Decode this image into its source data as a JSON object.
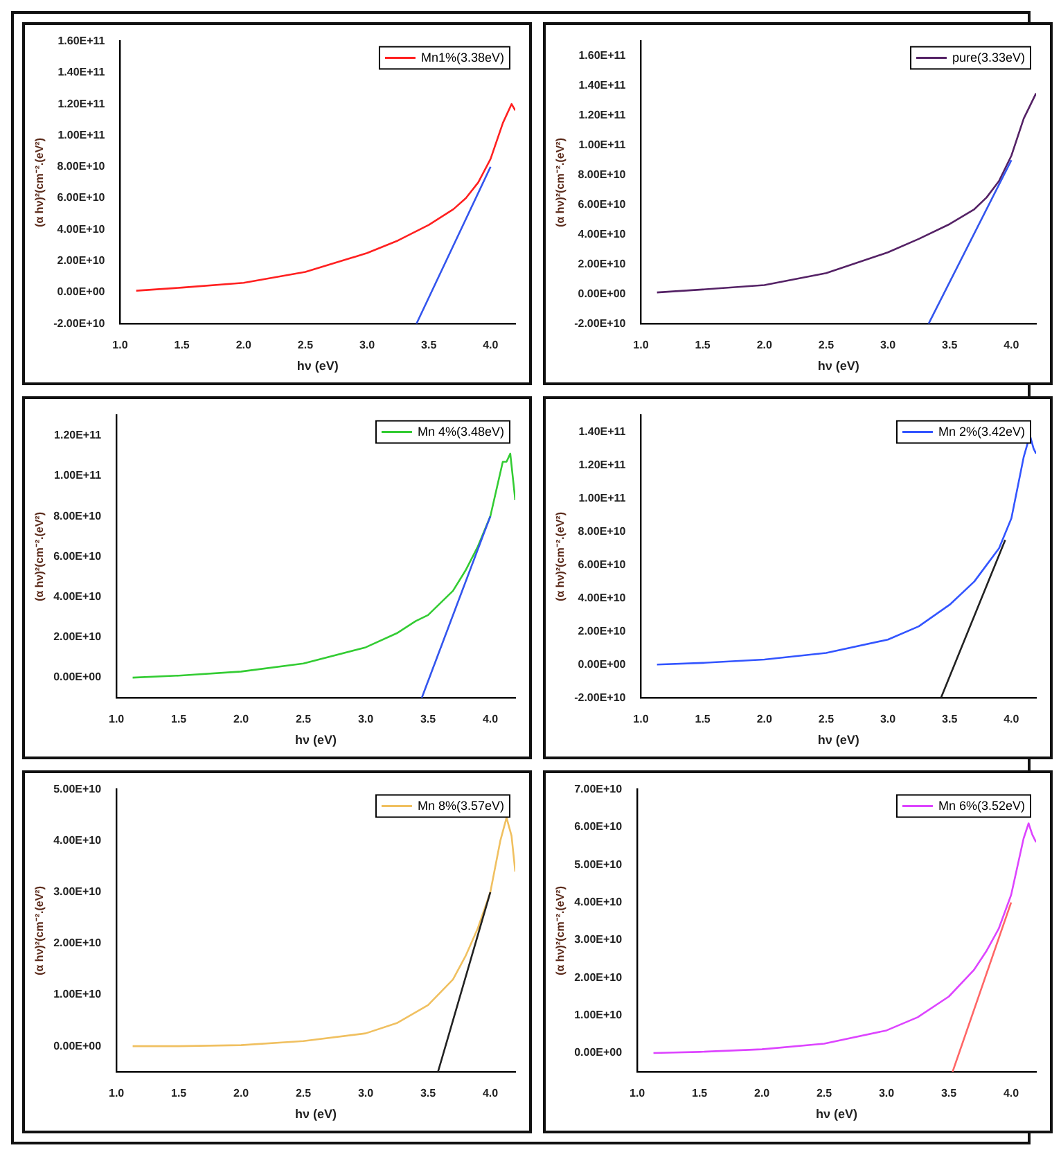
{
  "chart_data": [
    {
      "type": "line",
      "xlabel": "hν (eV)",
      "ylabel": "(α hν)²(cm⁻².(eV²)",
      "xlim": [
        1.0,
        4.2
      ],
      "xticks": [
        {
          "value": 1,
          "label": "1.0"
        },
        {
          "value": 1.5,
          "label": "1.5"
        },
        {
          "value": 2,
          "label": "2.0"
        },
        {
          "value": 2.5,
          "label": "2.5"
        },
        {
          "value": 3,
          "label": "3.0"
        },
        {
          "value": 3.5,
          "label": "3.5"
        },
        {
          "value": 4,
          "label": "4.0"
        }
      ],
      "ylim": [
        -20000000000.0,
        160000000000.0
      ],
      "yticks": [
        {
          "value": -20000000000.0,
          "label": "-2.00E+10"
        },
        {
          "value": 0,
          "label": "0.00E+00"
        },
        {
          "value": 20000000000.0,
          "label": "2.00E+10"
        },
        {
          "value": 40000000000.0,
          "label": "4.00E+10"
        },
        {
          "value": 60000000000.0,
          "label": "6.00E+10"
        },
        {
          "value": 80000000000.0,
          "label": "8.00E+10"
        },
        {
          "value": 100000000000.0,
          "label": "1.00E+11"
        },
        {
          "value": 120000000000.0,
          "label": "1.20E+11"
        },
        {
          "value": 140000000000.0,
          "label": "1.40E+11"
        },
        {
          "value": 160000000000.0,
          "label": "1.60E+11"
        }
      ],
      "grid": false,
      "legend": "top right",
      "marker": "none",
      "series": [
        {
          "name": "Mn1%(3.38eV)",
          "color": "#ff2020",
          "x": [
            1.13,
            1.5,
            2.0,
            2.5,
            3.0,
            3.25,
            3.5,
            3.7,
            3.8,
            3.9,
            4.0,
            4.1,
            4.17,
            4.2
          ],
          "values": [
            1000000000.0,
            3000000000.0,
            6000000000.0,
            13000000000.0,
            25000000000.0,
            33000000000.0,
            43000000000.0,
            53000000000.0,
            60000000000.0,
            70000000000.0,
            85000000000.0,
            108000000000.0,
            120000000000.0,
            116000000000.0
          ]
        },
        {
          "type": "line",
          "color": "#3355ee",
          "x": [
            3.4,
            4.0
          ],
          "values": [
            -20000000000.0,
            80000000000.0
          ]
        }
      ]
    },
    {
      "type": "line",
      "xlabel": "hν (eV)",
      "ylabel": "(α hν)²(cm⁻².(eV²)",
      "xlim": [
        1.0,
        4.2
      ],
      "xticks": [
        {
          "value": 1,
          "label": "1.0"
        },
        {
          "value": 1.5,
          "label": "1.5"
        },
        {
          "value": 2,
          "label": "2.0"
        },
        {
          "value": 2.5,
          "label": "2.5"
        },
        {
          "value": 3,
          "label": "3.0"
        },
        {
          "value": 3.5,
          "label": "3.5"
        },
        {
          "value": 4,
          "label": "4.0"
        }
      ],
      "ylim": [
        -20000000000.0,
        170000000000.0
      ],
      "yticks": [
        {
          "value": -20000000000.0,
          "label": "-2.00E+10"
        },
        {
          "value": 0,
          "label": "0.00E+00"
        },
        {
          "value": 20000000000.0,
          "label": "2.00E+10"
        },
        {
          "value": 40000000000.0,
          "label": "4.00E+10"
        },
        {
          "value": 60000000000.0,
          "label": "6.00E+10"
        },
        {
          "value": 80000000000.0,
          "label": "8.00E+10"
        },
        {
          "value": 100000000000.0,
          "label": "1.00E+11"
        },
        {
          "value": 120000000000.0,
          "label": "1.20E+11"
        },
        {
          "value": 140000000000.0,
          "label": "1.40E+11"
        },
        {
          "value": 160000000000.0,
          "label": "1.60E+11"
        }
      ],
      "grid": false,
      "legend": "top right",
      "marker": "none",
      "series": [
        {
          "name": "pure(3.33eV)",
          "color": "#552266",
          "x": [
            1.13,
            1.5,
            2.0,
            2.5,
            3.0,
            3.25,
            3.5,
            3.7,
            3.8,
            3.9,
            4.0,
            4.1,
            4.2
          ],
          "values": [
            1000000000.0,
            3000000000.0,
            6000000000.0,
            14000000000.0,
            28000000000.0,
            37000000000.0,
            47000000000.0,
            57000000000.0,
            65000000000.0,
            76000000000.0,
            93000000000.0,
            118000000000.0,
            135000000000.0
          ]
        },
        {
          "type": "line",
          "color": "#3355ee",
          "x": [
            3.33,
            4.0
          ],
          "values": [
            -20000000000.0,
            90000000000.0
          ]
        }
      ]
    },
    {
      "type": "line",
      "xlabel": "hν (eV)",
      "ylabel": "(α hν)²(cm⁻².(eV²)",
      "xlim": [
        1.0,
        4.2
      ],
      "xticks": [
        {
          "value": 1,
          "label": "1.0"
        },
        {
          "value": 1.5,
          "label": "1.5"
        },
        {
          "value": 2,
          "label": "2.0"
        },
        {
          "value": 2.5,
          "label": "2.5"
        },
        {
          "value": 3,
          "label": "3.0"
        },
        {
          "value": 3.5,
          "label": "3.5"
        },
        {
          "value": 4,
          "label": "4.0"
        }
      ],
      "ylim": [
        -10000000000.0,
        130000000000.0
      ],
      "yticks": [
        {
          "value": 0,
          "label": "0.00E+00"
        },
        {
          "value": 20000000000.0,
          "label": "2.00E+10"
        },
        {
          "value": 40000000000.0,
          "label": "4.00E+10"
        },
        {
          "value": 60000000000.0,
          "label": "6.00E+10"
        },
        {
          "value": 80000000000.0,
          "label": "8.00E+10"
        },
        {
          "value": 100000000000.0,
          "label": "1.00E+11"
        },
        {
          "value": 120000000000.0,
          "label": "1.20E+11"
        }
      ],
      "grid": false,
      "legend": "top right",
      "marker": "none",
      "series": [
        {
          "name": "Mn 4%(3.48eV)",
          "color": "#33cc33",
          "x": [
            1.13,
            1.5,
            2.0,
            2.5,
            3.0,
            3.25,
            3.4,
            3.5,
            3.7,
            3.8,
            3.9,
            4.0,
            4.1,
            4.13,
            4.16,
            4.2
          ],
          "values": [
            0,
            1000000000.0,
            3000000000.0,
            7000000000.0,
            15000000000.0,
            22000000000.0,
            28000000000.0,
            31000000000.0,
            43000000000.0,
            53000000000.0,
            65000000000.0,
            80000000000.0,
            107000000000.0,
            107000000000.0,
            111000000000.0,
            88000000000.0
          ]
        },
        {
          "type": "line",
          "color": "#3355ee",
          "x": [
            3.45,
            4.0
          ],
          "values": [
            -10000000000.0,
            80000000000.0
          ]
        }
      ]
    },
    {
      "type": "line",
      "xlabel": "hν (eV)",
      "ylabel": "(α hν)²(cm⁻².(eV²)",
      "xlim": [
        1.0,
        4.2
      ],
      "xticks": [
        {
          "value": 1,
          "label": "1.0"
        },
        {
          "value": 1.5,
          "label": "1.5"
        },
        {
          "value": 2,
          "label": "2.0"
        },
        {
          "value": 2.5,
          "label": "2.5"
        },
        {
          "value": 3,
          "label": "3.0"
        },
        {
          "value": 3.5,
          "label": "3.5"
        },
        {
          "value": 4,
          "label": "4.0"
        }
      ],
      "ylim": [
        -20000000000.0,
        150000000000.0
      ],
      "yticks": [
        {
          "value": -20000000000.0,
          "label": "-2.00E+10"
        },
        {
          "value": 0,
          "label": "0.00E+00"
        },
        {
          "value": 20000000000.0,
          "label": "2.00E+10"
        },
        {
          "value": 40000000000.0,
          "label": "4.00E+10"
        },
        {
          "value": 60000000000.0,
          "label": "6.00E+10"
        },
        {
          "value": 80000000000.0,
          "label": "8.00E+10"
        },
        {
          "value": 100000000000.0,
          "label": "1.00E+11"
        },
        {
          "value": 120000000000.0,
          "label": "1.20E+11"
        },
        {
          "value": 140000000000.0,
          "label": "1.40E+11"
        }
      ],
      "grid": false,
      "legend": "top right",
      "marker": "none",
      "series": [
        {
          "name": "Mn 2%(3.42eV)",
          "color": "#3355ff",
          "x": [
            1.13,
            1.5,
            2.0,
            2.5,
            3.0,
            3.25,
            3.5,
            3.7,
            3.8,
            3.9,
            4.0,
            4.1,
            4.15,
            4.18,
            4.2
          ],
          "values": [
            0,
            1000000000.0,
            3000000000.0,
            7000000000.0,
            15000000000.0,
            23000000000.0,
            36000000000.0,
            50000000000.0,
            60000000000.0,
            70000000000.0,
            88000000000.0,
            125000000000.0,
            138000000000.0,
            130000000000.0,
            127000000000.0
          ]
        },
        {
          "type": "line",
          "color": "#222222",
          "x": [
            3.43,
            3.95
          ],
          "values": [
            -20000000000.0,
            75000000000.0
          ]
        }
      ]
    },
    {
      "type": "line",
      "xlabel": "hν (eV)",
      "ylabel": "(α hν)²(cm⁻².(eV²)",
      "xlim": [
        1.0,
        4.2
      ],
      "xticks": [
        {
          "value": 1,
          "label": "1.0"
        },
        {
          "value": 1.5,
          "label": "1.5"
        },
        {
          "value": 2,
          "label": "2.0"
        },
        {
          "value": 2.5,
          "label": "2.5"
        },
        {
          "value": 3,
          "label": "3.0"
        },
        {
          "value": 3.5,
          "label": "3.5"
        },
        {
          "value": 4,
          "label": "4.0"
        }
      ],
      "ylim": [
        -5000000000.0,
        50000000000.0
      ],
      "yticks": [
        {
          "value": 0,
          "label": "0.00E+00"
        },
        {
          "value": 10000000000.0,
          "label": "1.00E+10"
        },
        {
          "value": 20000000000.0,
          "label": "2.00E+10"
        },
        {
          "value": 30000000000.0,
          "label": "3.00E+10"
        },
        {
          "value": 40000000000.0,
          "label": "4.00E+10"
        },
        {
          "value": 50000000000.0,
          "label": "5.00E+10"
        }
      ],
      "grid": false,
      "legend": "top right",
      "marker": "none",
      "series": [
        {
          "name": "Mn 8%(3.57eV)",
          "color": "#f0c060",
          "x": [
            1.13,
            1.5,
            2.0,
            2.5,
            3.0,
            3.25,
            3.5,
            3.7,
            3.8,
            3.9,
            4.0,
            4.08,
            4.13,
            4.17,
            4.2
          ],
          "values": [
            0,
            0,
            200000000.0,
            1000000000.0,
            2500000000.0,
            4500000000.0,
            8000000000.0,
            13000000000.0,
            17500000000.0,
            23000000000.0,
            30000000000.0,
            40000000000.0,
            44500000000.0,
            41000000000.0,
            34000000000.0
          ]
        },
        {
          "type": "line",
          "color": "#222222",
          "x": [
            3.58,
            4.0
          ],
          "values": [
            -5000000000.0,
            30000000000.0
          ]
        }
      ]
    },
    {
      "type": "line",
      "xlabel": "hν (eV)",
      "ylabel": "(α hν)²(cm⁻².(eV²)",
      "xlim": [
        1.0,
        4.2
      ],
      "xticks": [
        {
          "value": 1,
          "label": "1.0"
        },
        {
          "value": 1.5,
          "label": "1.5"
        },
        {
          "value": 2,
          "label": "2.0"
        },
        {
          "value": 2.5,
          "label": "2.5"
        },
        {
          "value": 3,
          "label": "3.0"
        },
        {
          "value": 3.5,
          "label": "3.5"
        },
        {
          "value": 4,
          "label": "4.0"
        }
      ],
      "ylim": [
        -5000000000.0,
        70000000000.0
      ],
      "yticks": [
        {
          "value": 0,
          "label": "0.00E+00"
        },
        {
          "value": 10000000000.0,
          "label": "1.00E+10"
        },
        {
          "value": 20000000000.0,
          "label": "2.00E+10"
        },
        {
          "value": 30000000000.0,
          "label": "3.00E+10"
        },
        {
          "value": 40000000000.0,
          "label": "4.00E+10"
        },
        {
          "value": 50000000000.0,
          "label": "5.00E+10"
        },
        {
          "value": 60000000000.0,
          "label": "6.00E+10"
        },
        {
          "value": 70000000000.0,
          "label": "7.00E+10"
        }
      ],
      "grid": false,
      "legend": "top right",
      "marker": "none",
      "series": [
        {
          "name": "Mn 6%(3.52eV)",
          "color": "#dd44ff",
          "x": [
            1.13,
            1.5,
            2.0,
            2.5,
            3.0,
            3.25,
            3.5,
            3.7,
            3.8,
            3.9,
            4.0,
            4.1,
            4.14,
            4.17,
            4.2
          ],
          "values": [
            0,
            300000000.0,
            1000000000.0,
            2500000000.0,
            6000000000.0,
            9500000000.0,
            15000000000.0,
            22000000000.0,
            27000000000.0,
            33000000000.0,
            42000000000.0,
            57000000000.0,
            61000000000.0,
            58000000000.0,
            56000000000.0
          ]
        },
        {
          "type": "line",
          "color": "#ff6666",
          "x": [
            3.53,
            4.0
          ],
          "values": [
            -5000000000.0,
            40000000000.0
          ]
        }
      ]
    }
  ]
}
